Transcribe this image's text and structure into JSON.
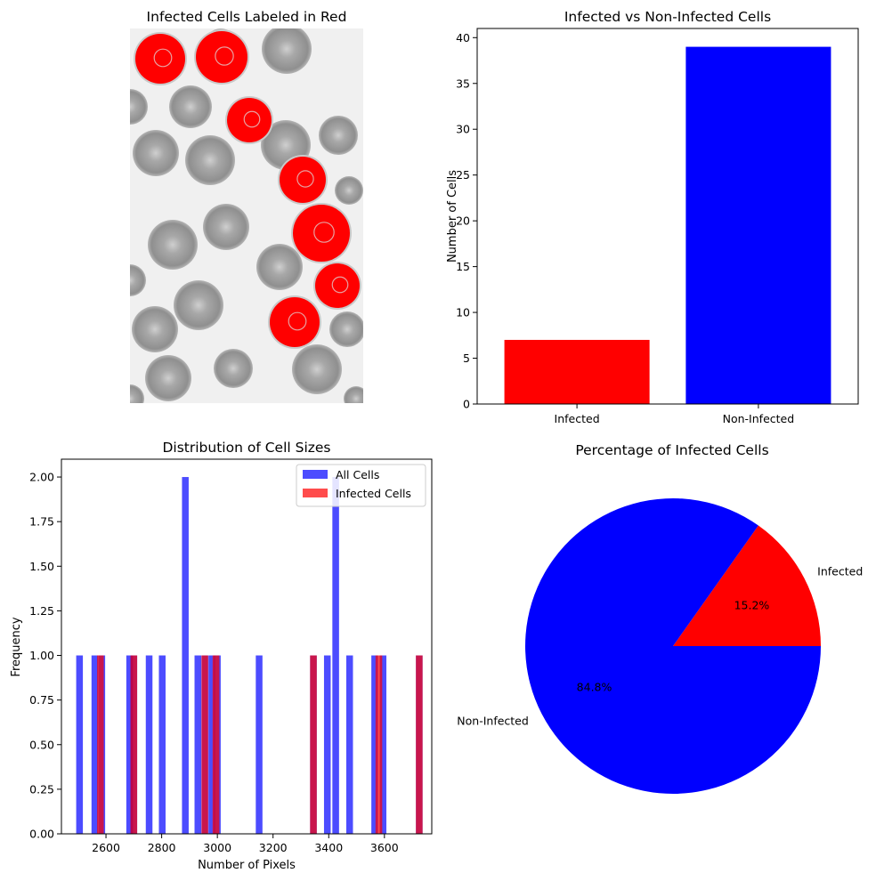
{
  "figure": {
    "panels": [
      {
        "title": "Infected Cells Labeled in Red",
        "type": "image",
        "image_kind": "blood-smear-micrograph",
        "infected_color": "#ff0000"
      }
    ]
  },
  "chart_data": [
    {
      "type": "bar",
      "title": "Infected vs Non-Infected Cells",
      "xlabel": "",
      "ylabel": "Number of Cells",
      "categories": [
        "Infected",
        "Non-Infected"
      ],
      "values": [
        7,
        39
      ],
      "colors": [
        "#ff0000",
        "#0000ff"
      ],
      "ylim": [
        0,
        41
      ],
      "yticks": [
        "0",
        "5",
        "10",
        "15",
        "20",
        "25",
        "30",
        "35",
        "40"
      ]
    },
    {
      "type": "bar",
      "subtype": "histogram",
      "title": "Distribution of Cell Sizes",
      "xlabel": "Number of Pixels",
      "ylabel": "Frequency",
      "xlim": [
        2440,
        3770
      ],
      "ylim": [
        0,
        2.1
      ],
      "xticks": [
        "2600",
        "2800",
        "3000",
        "3200",
        "3400",
        "3600"
      ],
      "yticks": [
        "0.00",
        "0.25",
        "0.50",
        "0.75",
        "1.00",
        "1.25",
        "1.50",
        "1.75",
        "2.00"
      ],
      "legend": "top-right",
      "series": [
        {
          "name": "All Cells",
          "color": "#0000ff",
          "alpha": 0.7,
          "bins": [
            {
              "x": 2505,
              "count": 1
            },
            {
              "x": 2560,
              "count": 1
            },
            {
              "x": 2585,
              "count": 1
            },
            {
              "x": 2685,
              "count": 1
            },
            {
              "x": 2700,
              "count": 1
            },
            {
              "x": 2755,
              "count": 1
            },
            {
              "x": 2802,
              "count": 1
            },
            {
              "x": 2885,
              "count": 2
            },
            {
              "x": 2930,
              "count": 1
            },
            {
              "x": 2955,
              "count": 1
            },
            {
              "x": 2980,
              "count": 1
            },
            {
              "x": 3000,
              "count": 1
            },
            {
              "x": 3150,
              "count": 1
            },
            {
              "x": 3345,
              "count": 1
            },
            {
              "x": 3395,
              "count": 1
            },
            {
              "x": 3425,
              "count": 2
            },
            {
              "x": 3475,
              "count": 1
            },
            {
              "x": 3565,
              "count": 1
            },
            {
              "x": 3595,
              "count": 1
            },
            {
              "x": 3725,
              "count": 1
            }
          ]
        },
        {
          "name": "Infected Cells",
          "color": "#ff0000",
          "alpha": 0.7,
          "bins": [
            {
              "x": 2580,
              "count": 1
            },
            {
              "x": 2700,
              "count": 1
            },
            {
              "x": 2955,
              "count": 1
            },
            {
              "x": 2995,
              "count": 1
            },
            {
              "x": 3345,
              "count": 1
            },
            {
              "x": 3580,
              "count": 1
            },
            {
              "x": 3725,
              "count": 1
            }
          ]
        }
      ]
    },
    {
      "type": "pie",
      "title": "Percentage of Infected Cells",
      "labels": [
        "Infected",
        "Non-Infected"
      ],
      "values": [
        15.2,
        84.8
      ],
      "value_labels": [
        "15.2%",
        "84.8%"
      ],
      "colors": [
        "#ff0000",
        "#0000ff"
      ]
    }
  ]
}
